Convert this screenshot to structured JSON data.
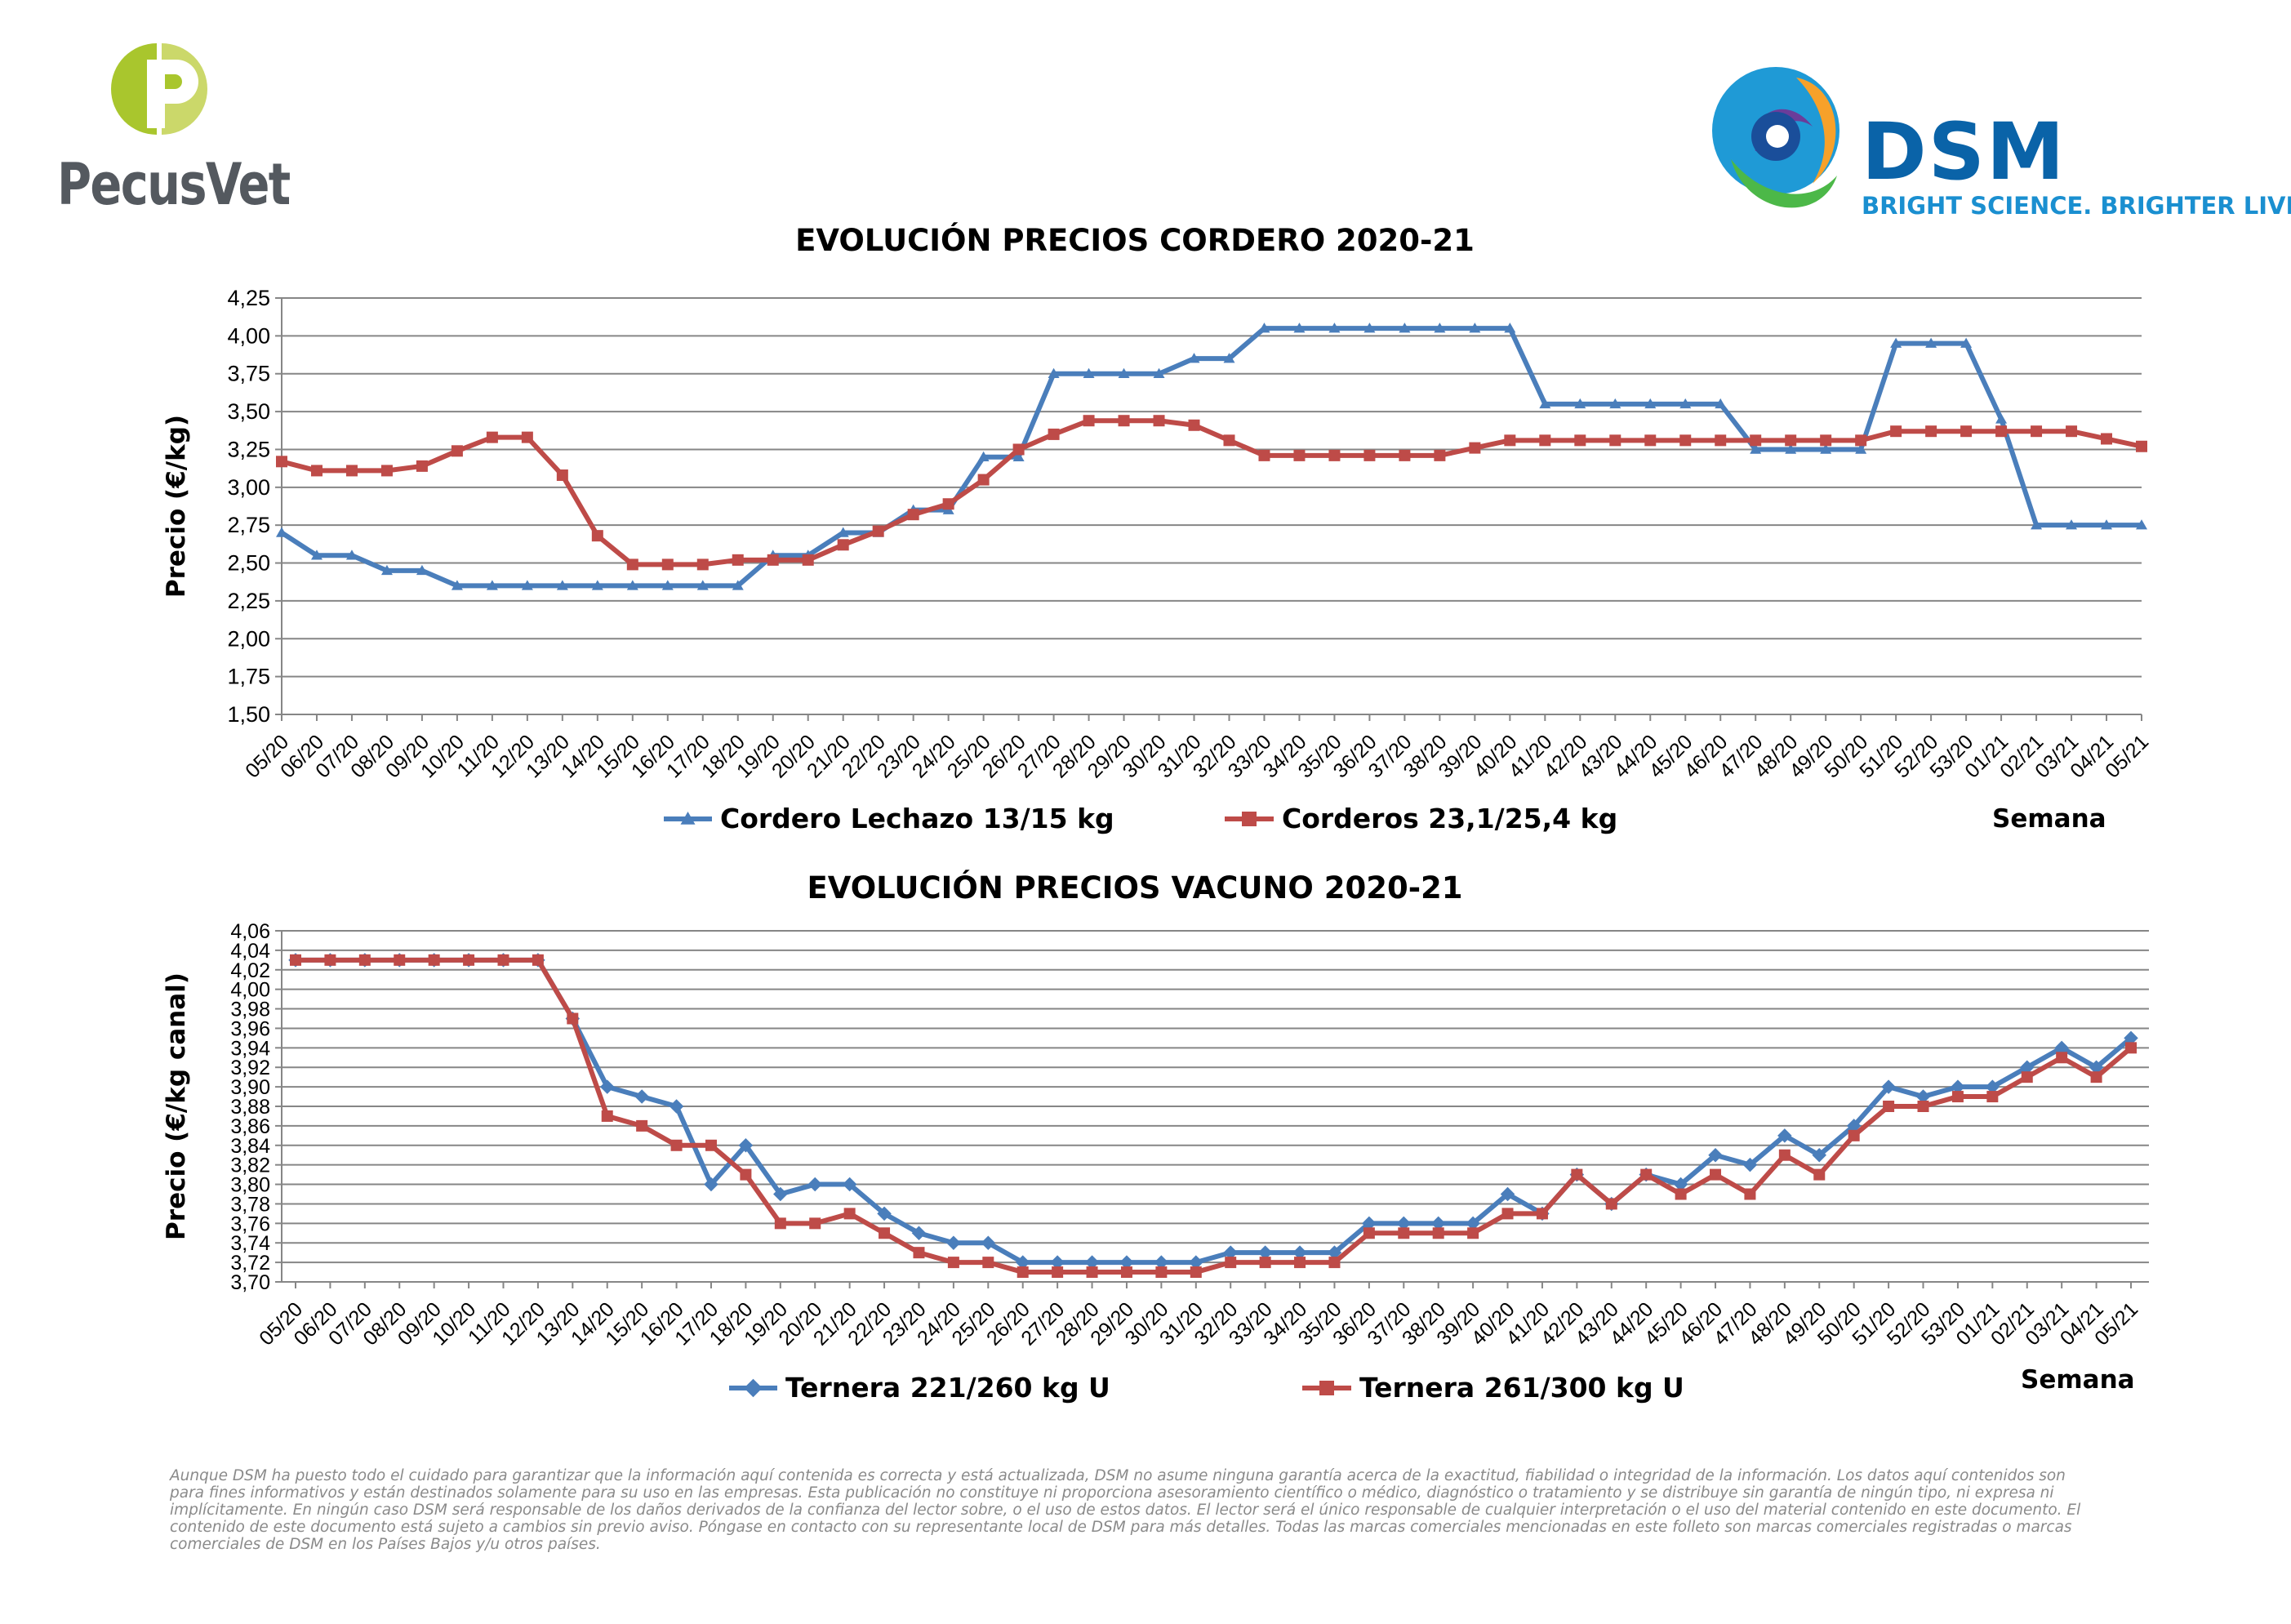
{
  "branding": {
    "pecusvet_name": "PecusVet",
    "dsm_name": "DSM",
    "dsm_tagline": "BRIGHT SCIENCE. BRIGHTER LIVING."
  },
  "colors": {
    "blue": "#4a7ebb",
    "red": "#be4b48",
    "grid": "#868686",
    "pecus_green": "#a9c62d",
    "dsm_blue": "#0a63a8"
  },
  "chart_data": [
    {
      "type": "line",
      "title": "EVOLUCIÓN PRECIOS CORDERO 2020-21",
      "ylabel": "Precio (€/kg)",
      "xlabel": "Semana",
      "ylim": [
        1.5,
        4.25
      ],
      "ytick_labels": [
        "1,50",
        "1,75",
        "2,00",
        "2,25",
        "2,50",
        "2,75",
        "3,00",
        "3,25",
        "3,50",
        "3,75",
        "4,00",
        "4,25"
      ],
      "grid": true,
      "legend_position": "bottom",
      "categories": [
        "05/20",
        "06/20",
        "07/20",
        "08/20",
        "09/20",
        "10/20",
        "11/20",
        "12/20",
        "13/20",
        "14/20",
        "15/20",
        "16/20",
        "17/20",
        "18/20",
        "19/20",
        "20/20",
        "21/20",
        "22/20",
        "23/20",
        "24/20",
        "25/20",
        "26/20",
        "27/20",
        "28/20",
        "29/20",
        "30/20",
        "31/20",
        "32/20",
        "33/20",
        "34/20",
        "35/20",
        "36/20",
        "37/20",
        "38/20",
        "39/20",
        "40/20",
        "41/20",
        "42/20",
        "43/20",
        "44/20",
        "45/20",
        "46/20",
        "47/20",
        "48/20",
        "49/20",
        "50/20",
        "51/20",
        "52/20",
        "53/20",
        "01/21",
        "02/21",
        "03/21",
        "04/21",
        "05/21"
      ],
      "series": [
        {
          "name": "Cordero Lechazo 13/15 kg",
          "color": "#4a7ebb",
          "marker": "triangle",
          "values": [
            2.7,
            2.55,
            2.55,
            2.45,
            2.45,
            2.35,
            2.35,
            2.35,
            2.35,
            2.35,
            2.35,
            2.35,
            2.35,
            2.35,
            2.55,
            2.55,
            2.7,
            2.7,
            2.85,
            2.85,
            3.2,
            3.2,
            3.75,
            3.75,
            3.75,
            3.75,
            3.85,
            3.85,
            4.05,
            4.05,
            4.05,
            4.05,
            4.05,
            4.05,
            4.05,
            4.05,
            3.55,
            3.55,
            3.55,
            3.55,
            3.55,
            3.55,
            3.25,
            3.25,
            3.25,
            3.25,
            3.95,
            3.95,
            3.95,
            3.45,
            2.75,
            2.75,
            2.75,
            2.75
          ]
        },
        {
          "name": "Corderos 23,1/25,4 kg",
          "color": "#be4b48",
          "marker": "square",
          "values": [
            3.17,
            3.11,
            3.11,
            3.11,
            3.14,
            3.24,
            3.33,
            3.33,
            3.08,
            2.68,
            2.49,
            2.49,
            2.49,
            2.52,
            2.52,
            2.52,
            2.62,
            2.71,
            2.82,
            2.89,
            3.05,
            3.25,
            3.35,
            3.44,
            3.44,
            3.44,
            3.41,
            3.31,
            3.21,
            3.21,
            3.21,
            3.21,
            3.21,
            3.21,
            3.26,
            3.31,
            3.31,
            3.31,
            3.31,
            3.31,
            3.31,
            3.31,
            3.31,
            3.31,
            3.31,
            3.31,
            3.37,
            3.37,
            3.37,
            3.37,
            3.37,
            3.37,
            3.32,
            3.27
          ]
        }
      ]
    },
    {
      "type": "line",
      "title": "EVOLUCIÓN PRECIOS VACUNO 2020-21",
      "ylabel": "Precio (€/kg canal)",
      "xlabel": "Semana",
      "ylim": [
        3.7,
        4.06
      ],
      "ytick_labels": [
        "3,70",
        "3,72",
        "3,74",
        "3,76",
        "3,78",
        "3,80",
        "3,82",
        "3,84",
        "3,86",
        "3,88",
        "3,90",
        "3,92",
        "3,94",
        "3,96",
        "3,98",
        "4,00",
        "4,02",
        "4,04",
        "4,06"
      ],
      "grid": true,
      "legend_position": "bottom",
      "categories": [
        "05/20",
        "06/20",
        "07/20",
        "08/20",
        "09/20",
        "10/20",
        "11/20",
        "12/20",
        "13/20",
        "14/20",
        "15/20",
        "16/20",
        "17/20",
        "18/20",
        "19/20",
        "20/20",
        "21/20",
        "22/20",
        "23/20",
        "24/20",
        "25/20",
        "26/20",
        "27/20",
        "28/20",
        "29/20",
        "30/20",
        "31/20",
        "32/20",
        "33/20",
        "34/20",
        "35/20",
        "36/20",
        "37/20",
        "38/20",
        "39/20",
        "40/20",
        "41/20",
        "42/20",
        "43/20",
        "44/20",
        "45/20",
        "46/20",
        "47/20",
        "48/20",
        "49/20",
        "50/20",
        "51/20",
        "52/20",
        "53/20",
        "01/21",
        "02/21",
        "03/21",
        "04/21",
        "05/21"
      ],
      "series": [
        {
          "name": "Ternera 221/260 kg U",
          "color": "#4a7ebb",
          "marker": "diamond",
          "values": [
            4.03,
            4.03,
            4.03,
            4.03,
            4.03,
            4.03,
            4.03,
            4.03,
            3.97,
            3.9,
            3.89,
            3.88,
            3.8,
            3.84,
            3.79,
            3.8,
            3.8,
            3.77,
            3.75,
            3.74,
            3.74,
            3.72,
            3.72,
            3.72,
            3.72,
            3.72,
            3.72,
            3.73,
            3.73,
            3.73,
            3.73,
            3.76,
            3.76,
            3.76,
            3.76,
            3.79,
            3.77,
            3.81,
            3.78,
            3.81,
            3.8,
            3.83,
            3.82,
            3.85,
            3.83,
            3.86,
            3.9,
            3.89,
            3.9,
            3.9,
            3.92,
            3.94,
            3.92,
            3.95
          ]
        },
        {
          "name": "Ternera 261/300 kg U",
          "color": "#be4b48",
          "marker": "square",
          "values": [
            4.03,
            4.03,
            4.03,
            4.03,
            4.03,
            4.03,
            4.03,
            4.03,
            3.97,
            3.87,
            3.86,
            3.84,
            3.84,
            3.81,
            3.76,
            3.76,
            3.77,
            3.75,
            3.73,
            3.72,
            3.72,
            3.71,
            3.71,
            3.71,
            3.71,
            3.71,
            3.71,
            3.72,
            3.72,
            3.72,
            3.72,
            3.75,
            3.75,
            3.75,
            3.75,
            3.77,
            3.77,
            3.81,
            3.78,
            3.81,
            3.79,
            3.81,
            3.79,
            3.83,
            3.81,
            3.85,
            3.88,
            3.88,
            3.89,
            3.89,
            3.91,
            3.93,
            3.91,
            3.94
          ]
        }
      ]
    }
  ],
  "disclaimer": "Aunque DSM ha puesto todo el cuidado para garantizar que la información aquí contenida es correcta y está actualizada, DSM no asume ninguna garantía acerca de la exactitud, fiabilidad o integridad de la información. Los datos aquí contenidos son para fines informativos y están destinados solamente para su uso en las empresas. Esta publicación no constituye ni proporciona asesoramiento científico o médico, diagnóstico o tratamiento y se distribuye sin garantía de ningún tipo, ni expresa ni implícitamente. En ningún caso DSM será responsable de los daños derivados de la confianza del lector sobre, o el uso de estos datos. El lector será el único responsable de cualquier interpretación o el uso del material contenido en este documento. El contenido de este documento está sujeto a cambios sin previo aviso. Póngase en contacto con su representante local de DSM para más detalles. Todas las marcas comerciales mencionadas en este folleto son marcas comerciales registradas o marcas comerciales de DSM en los Países Bajos y/u otros países."
}
